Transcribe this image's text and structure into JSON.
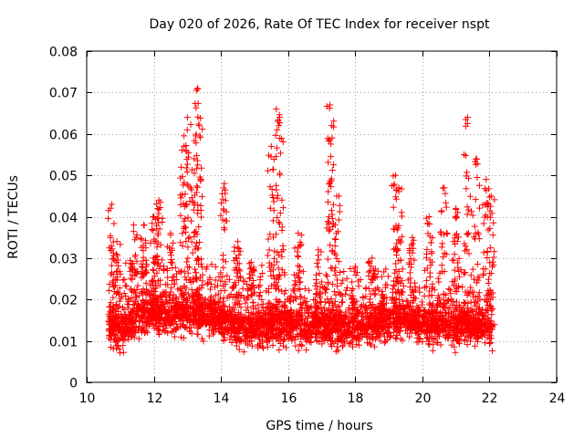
{
  "chart_data": {
    "type": "scatter",
    "title": "Day 020 of 2026, Rate Of TEC Index for receiver nspt",
    "xlabel": "GPS time / hours",
    "ylabel": "ROTI / TECUs",
    "xlim": [
      10,
      24
    ],
    "ylim": [
      0,
      0.08
    ],
    "xticks": [
      10,
      12,
      14,
      16,
      18,
      20,
      22,
      24
    ],
    "xtick_labels": [
      "10",
      "12",
      "14",
      "16",
      "18",
      "20",
      "22",
      "24"
    ],
    "yticks": [
      0,
      0.01,
      0.02,
      0.03,
      0.04,
      0.05,
      0.06,
      0.07,
      0.08
    ],
    "ytick_labels": [
      "0",
      "0.01",
      "0.02",
      "0.03",
      "0.04",
      "0.05",
      "0.06",
      "0.07",
      "0.08"
    ],
    "grid": true,
    "marker": "plus",
    "color": "#ff0000",
    "series": [
      {
        "name": "ROTI",
        "x_range": [
          10.65,
          22.1
        ],
        "baseline": [
          [
            10.7,
            0.014
          ],
          [
            11.0,
            0.013
          ],
          [
            11.5,
            0.016
          ],
          [
            12.0,
            0.017
          ],
          [
            12.5,
            0.016
          ],
          [
            13.0,
            0.017
          ],
          [
            13.5,
            0.016
          ],
          [
            14.0,
            0.015
          ],
          [
            14.5,
            0.013
          ],
          [
            15.0,
            0.013
          ],
          [
            15.5,
            0.014
          ],
          [
            16.0,
            0.014
          ],
          [
            16.5,
            0.013
          ],
          [
            17.0,
            0.014
          ],
          [
            17.5,
            0.013
          ],
          [
            18.0,
            0.013
          ],
          [
            18.5,
            0.014
          ],
          [
            19.0,
            0.015
          ],
          [
            19.5,
            0.015
          ],
          [
            20.0,
            0.014
          ],
          [
            20.5,
            0.014
          ],
          [
            21.0,
            0.014
          ],
          [
            21.5,
            0.014
          ],
          [
            22.0,
            0.013
          ]
        ],
        "peaks": [
          [
            10.75,
            0.043
          ],
          [
            10.9,
            0.034
          ],
          [
            11.4,
            0.038
          ],
          [
            11.7,
            0.038
          ],
          [
            12.0,
            0.04
          ],
          [
            12.15,
            0.044
          ],
          [
            12.5,
            0.036
          ],
          [
            12.9,
            0.057
          ],
          [
            13.0,
            0.064
          ],
          [
            13.2,
            0.054
          ],
          [
            13.3,
            0.071
          ],
          [
            13.35,
            0.062
          ],
          [
            14.1,
            0.048
          ],
          [
            14.5,
            0.034
          ],
          [
            14.9,
            0.029
          ],
          [
            15.5,
            0.057
          ],
          [
            15.65,
            0.066
          ],
          [
            15.75,
            0.064
          ],
          [
            16.3,
            0.036
          ],
          [
            16.9,
            0.032
          ],
          [
            17.25,
            0.067
          ],
          [
            17.3,
            0.062
          ],
          [
            17.45,
            0.045
          ],
          [
            18.0,
            0.028
          ],
          [
            18.5,
            0.03
          ],
          [
            19.2,
            0.05
          ],
          [
            19.3,
            0.047
          ],
          [
            19.7,
            0.035
          ],
          [
            20.2,
            0.04
          ],
          [
            20.65,
            0.047
          ],
          [
            21.0,
            0.042
          ],
          [
            21.35,
            0.064
          ],
          [
            21.6,
            0.054
          ],
          [
            21.9,
            0.049
          ],
          [
            22.05,
            0.045
          ]
        ]
      }
    ]
  }
}
